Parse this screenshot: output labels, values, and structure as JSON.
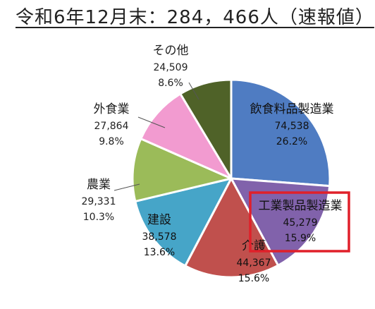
{
  "title": "令和6年12月末：284，466人（速報値）",
  "chart_data": {
    "type": "pie",
    "title": "令和6年12月末：284，466人（速報値）",
    "start": "12 o'clock",
    "direction": "clockwise",
    "highlighted": "工業製品製造業",
    "highlight_color": "#e0202a",
    "slices": [
      {
        "label": "飲食料品製造業",
        "value": 74538,
        "value_label": "74,538",
        "percent": "26.2%",
        "color": "#4f7cc2"
      },
      {
        "label": "工業製品製造業",
        "value": 45279,
        "value_label": "45,279",
        "percent": "15.9%",
        "color": "#8162ab"
      },
      {
        "label": "介護",
        "value": 44367,
        "value_label": "44,367",
        "percent": "15.6%",
        "color": "#c0504d"
      },
      {
        "label": "建設",
        "value": 38578,
        "value_label": "38,578",
        "percent": "13.6%",
        "color": "#46a5c8"
      },
      {
        "label": "農業",
        "value": 29331,
        "value_label": "29,331",
        "percent": "10.3%",
        "color": "#9bbb59"
      },
      {
        "label": "外食業",
        "value": 27864,
        "value_label": "27,864",
        "percent": "9.8%",
        "color": "#f29bd0"
      },
      {
        "label": "その他",
        "value": 24509,
        "value_label": "24,509",
        "percent": "8.6%",
        "color": "#4f6228"
      }
    ]
  }
}
